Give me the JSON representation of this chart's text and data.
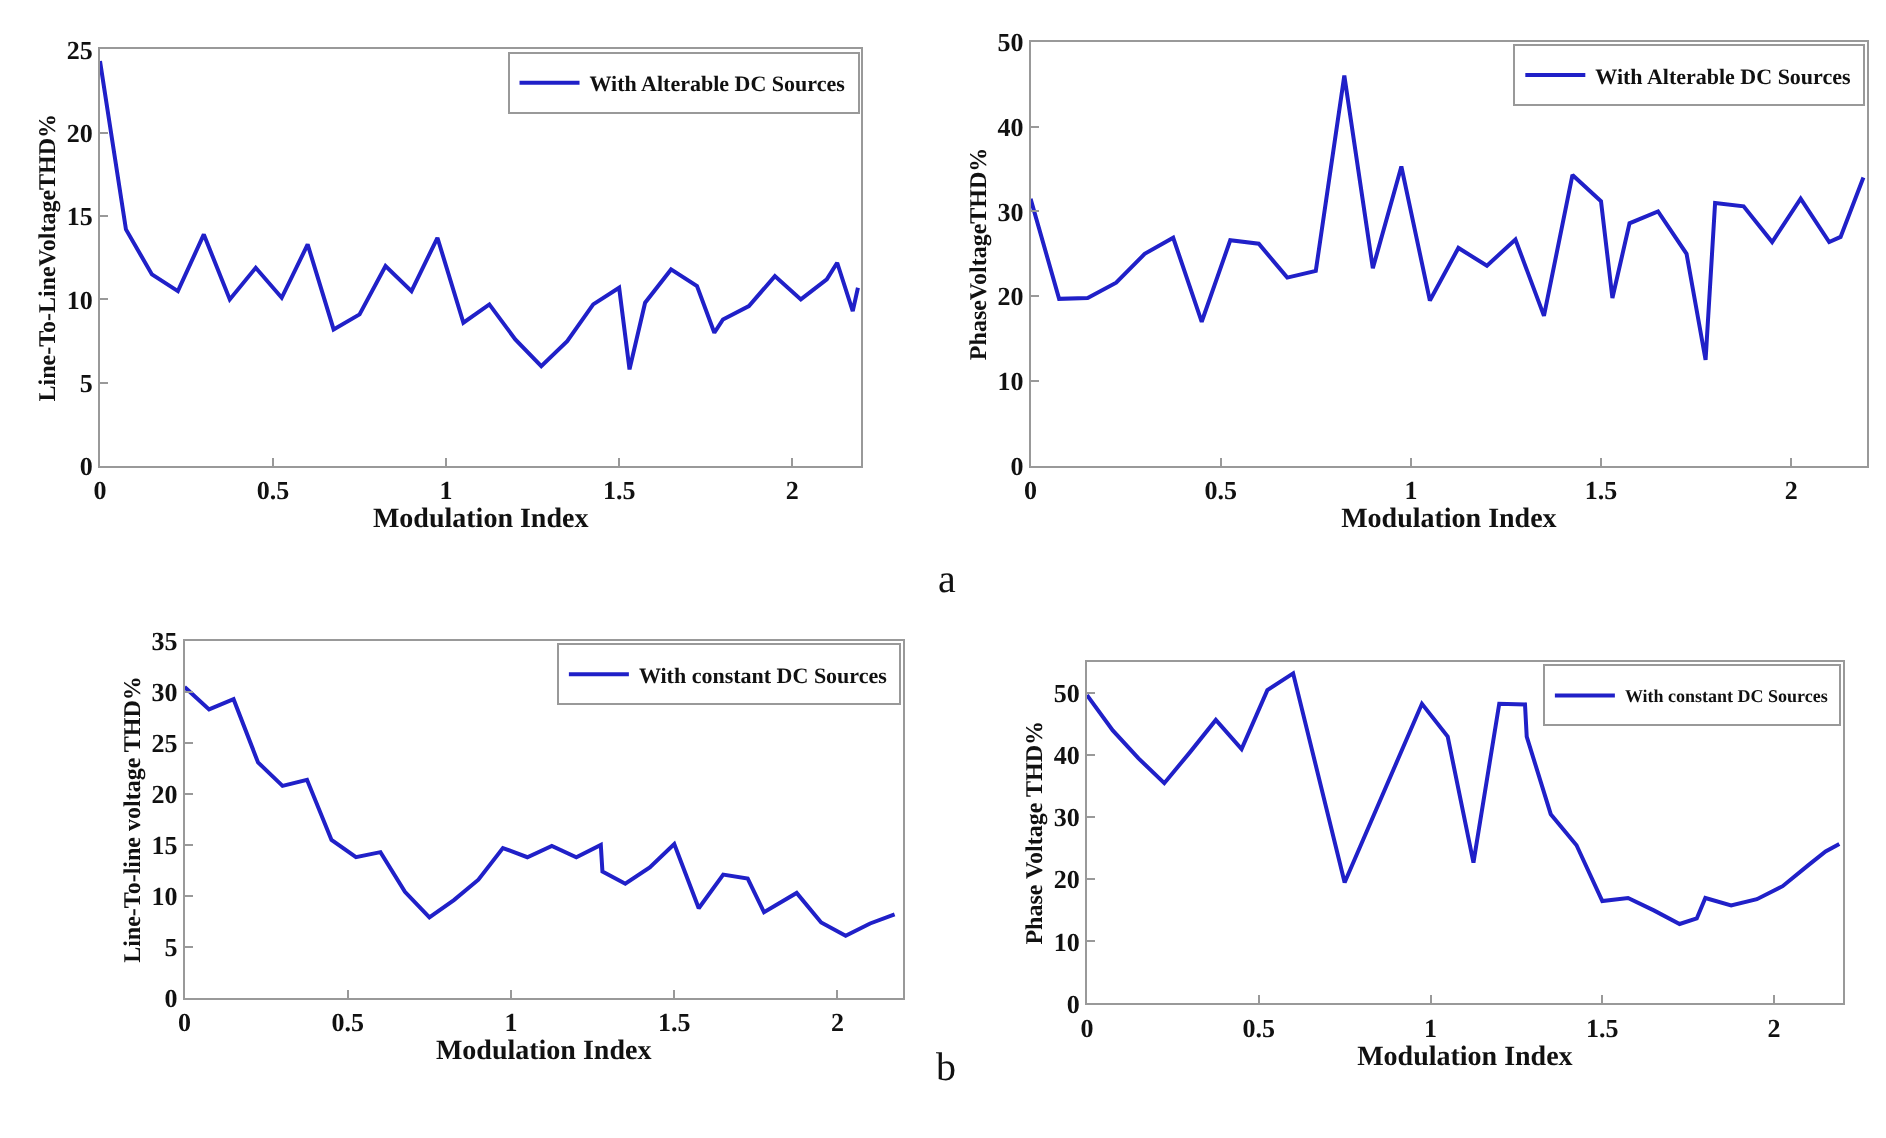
{
  "chart_data": [
    {
      "type": "line",
      "xlabel": "Modulation Index",
      "ylabel": "Line-To-LineVoltageTHD%",
      "annotations": [
        "a"
      ],
      "xlim": [
        0,
        2.2
      ],
      "xticks": [
        0,
        0.5,
        1,
        1.5,
        2
      ],
      "ylim": [
        0,
        25
      ],
      "yticks": [
        0,
        5,
        10,
        15,
        20,
        25
      ],
      "legend": "top right",
      "x": [
        0,
        0.075,
        0.15,
        0.225,
        0.3,
        0.375,
        0.45,
        0.525,
        0.6,
        0.675,
        0.75,
        0.825,
        0.9,
        0.975,
        1.05,
        1.125,
        1.2,
        1.275,
        1.35,
        1.425,
        1.5,
        1.53,
        1.575,
        1.65,
        1.725,
        1.775,
        1.8,
        1.875,
        1.95,
        2.025,
        2.1,
        2.13,
        2.175,
        2.19
      ],
      "series": [
        {
          "name": "With Alterable DC Sources",
          "color": "#2020c8",
          "values": [
            24.3,
            14.2,
            11.5,
            10.5,
            13.9,
            10,
            11.9,
            10.1,
            13.3,
            8.2,
            9.1,
            12,
            10.5,
            13.7,
            8.6,
            9.7,
            7.6,
            6,
            7.5,
            9.7,
            10.7,
            5.8,
            9.8,
            11.8,
            10.8,
            8,
            8.8,
            9.6,
            11.4,
            10,
            11.2,
            12.2,
            9.3,
            10.7
          ]
        }
      ]
    },
    {
      "type": "line",
      "xlabel": "Modulation Index",
      "ylabel": "PhaseVoltageTHD%",
      "xlim": [
        0,
        2.2
      ],
      "xticks": [
        0,
        0.5,
        1,
        1.5,
        2
      ],
      "ylim": [
        0,
        50
      ],
      "yticks": [
        0,
        10,
        20,
        30,
        40,
        50
      ],
      "legend": "top right",
      "x": [
        0,
        0.075,
        0.15,
        0.225,
        0.3,
        0.375,
        0.45,
        0.525,
        0.6,
        0.675,
        0.75,
        0.825,
        0.9,
        0.975,
        1.05,
        1.125,
        1.2,
        1.275,
        1.35,
        1.425,
        1.5,
        1.53,
        1.575,
        1.65,
        1.725,
        1.775,
        1.8,
        1.875,
        1.95,
        2.025,
        2.1,
        2.13,
        2.19
      ],
      "series": [
        {
          "name": "With Alterable DC Sources",
          "color": "#2020c8",
          "values": [
            31.5,
            19.7,
            19.8,
            21.6,
            25,
            26.9,
            17,
            26.6,
            26.2,
            22.2,
            23,
            46,
            23.3,
            35.3,
            19.5,
            25.7,
            23.6,
            26.7,
            17.7,
            34.3,
            31.2,
            19.8,
            28.6,
            30,
            25,
            12.5,
            31,
            30.6,
            26.4,
            31.5,
            26.4,
            27,
            34
          ]
        }
      ]
    },
    {
      "type": "line",
      "xlabel": "Modulation Index",
      "ylabel": "Line-To-line voltage THD%",
      "annotations": [
        "b"
      ],
      "xlim": [
        0,
        2.2
      ],
      "xticks": [
        0,
        0.5,
        1,
        1.5,
        2
      ],
      "ylim": [
        0,
        35
      ],
      "yticks": [
        0,
        5,
        10,
        15,
        20,
        25,
        30,
        35
      ],
      "legend": "top right",
      "x": [
        0,
        0.075,
        0.15,
        0.225,
        0.3,
        0.375,
        0.45,
        0.525,
        0.6,
        0.675,
        0.75,
        0.825,
        0.9,
        0.975,
        1.05,
        1.125,
        1.2,
        1.275,
        1.28,
        1.35,
        1.425,
        1.5,
        1.575,
        1.65,
        1.725,
        1.775,
        1.875,
        1.95,
        2.025,
        2.1,
        2.175
      ],
      "series": [
        {
          "name": "With constant DC Sources",
          "color": "#2020c8",
          "values": [
            30.5,
            28.3,
            29.3,
            23.1,
            20.8,
            21.4,
            15.5,
            13.8,
            14.3,
            10.4,
            7.9,
            9.6,
            11.6,
            14.7,
            13.8,
            14.9,
            13.8,
            15,
            12.4,
            11.2,
            12.8,
            15.1,
            8.8,
            12.1,
            11.7,
            8.4,
            10.3,
            7.4,
            6.1,
            7.3,
            8.2
          ]
        }
      ]
    },
    {
      "type": "line",
      "xlabel": "Modulation Index",
      "ylabel": "Phase Voltage THD%",
      "xlim": [
        0,
        2.2
      ],
      "xticks": [
        0,
        0.5,
        1,
        1.5,
        2
      ],
      "ylim": [
        0,
        55
      ],
      "yticks": [
        0,
        10,
        20,
        30,
        40,
        50
      ],
      "legend": "top right",
      "x": [
        0,
        0.075,
        0.15,
        0.225,
        0.3,
        0.375,
        0.45,
        0.525,
        0.6,
        0.75,
        0.975,
        1.05,
        1.125,
        1.2,
        1.275,
        1.28,
        1.35,
        1.425,
        1.5,
        1.575,
        1.65,
        1.725,
        1.775,
        1.8,
        1.875,
        1.95,
        2.025,
        2.1,
        2.15,
        2.19
      ],
      "series": [
        {
          "name": "With constant DC Sources",
          "color": "#2020c8",
          "values": [
            49.7,
            44,
            39.5,
            35.5,
            40.5,
            45.7,
            41,
            50.5,
            53.2,
            19.5,
            48.3,
            43,
            22.7,
            48.3,
            48.2,
            43,
            30.5,
            25.5,
            16.5,
            17,
            15,
            12.8,
            13.7,
            17,
            15.8,
            16.8,
            18.9,
            22.3,
            24.5,
            25.7
          ]
        }
      ]
    }
  ]
}
